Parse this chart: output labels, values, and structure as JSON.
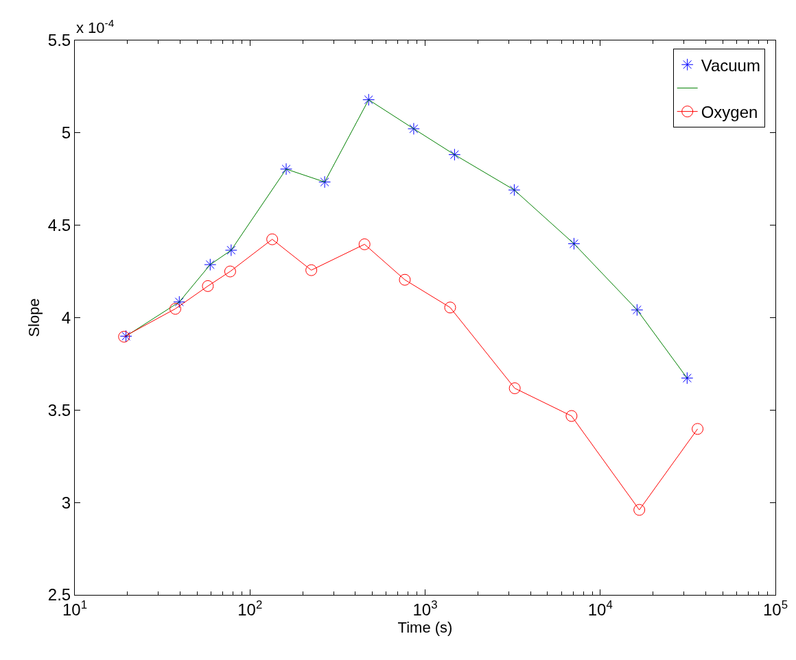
{
  "chart_data": {
    "type": "line",
    "xlabel": "Time (s)",
    "ylabel": "Slope",
    "log": "x",
    "legend": "top right",
    "annotations": [
      "x 10$^{-4}$"
    ],
    "xlim": [
      10,
      100000
    ],
    "xticks": [
      {
        "value": 10,
        "label": "10$^{1}$"
      },
      {
        "value": 100,
        "label": "10$^{2}$"
      },
      {
        "value": 1000,
        "label": "10$^{3}$"
      },
      {
        "value": 10000,
        "label": "10$^{4}$"
      },
      {
        "value": 100000,
        "label": "10$^{5}$"
      }
    ],
    "ylim": [
      2.5,
      5.5
    ],
    "yticks": [
      2.5,
      3,
      3.5,
      4,
      4.5,
      5,
      5.5
    ],
    "series": [
      {
        "name": "Vacuum",
        "type": "scatter",
        "marker": "cross",
        "color": "#0000ff",
        "x": [
          19.6,
          39.5,
          59.3,
          78.1,
          161,
          267,
          476,
          861,
          1472,
          3228,
          7078,
          16220,
          31330
        ],
        "values": [
          3.9,
          4.085,
          4.287,
          4.365,
          4.804,
          4.734,
          5.179,
          5.022,
          4.882,
          4.691,
          4.4,
          4.042,
          3.673
        ]
      },
      {
        "marker": "none",
        "line_style": "solid",
        "color": "#008000",
        "x": [
          19.6,
          39.5,
          59.3,
          78.1,
          161,
          267,
          476,
          861,
          1472,
          3228,
          7078,
          16220,
          31330
        ],
        "values": [
          3.9,
          4.085,
          4.287,
          4.365,
          4.804,
          4.734,
          5.179,
          5.022,
          4.882,
          4.691,
          4.4,
          4.042,
          3.673
        ]
      },
      {
        "name": "Oxygen",
        "marker": "circle",
        "line_style": "solid",
        "color": "#ff0000",
        "x": [
          19.1,
          37.5,
          57.5,
          77.1,
          134,
          224,
          451,
          766,
          1390,
          3250,
          6855,
          16710,
          35950
        ],
        "values": [
          3.897,
          4.048,
          4.171,
          4.25,
          4.424,
          4.257,
          4.397,
          4.205,
          4.055,
          3.618,
          3.468,
          2.96,
          3.398
        ]
      }
    ]
  }
}
